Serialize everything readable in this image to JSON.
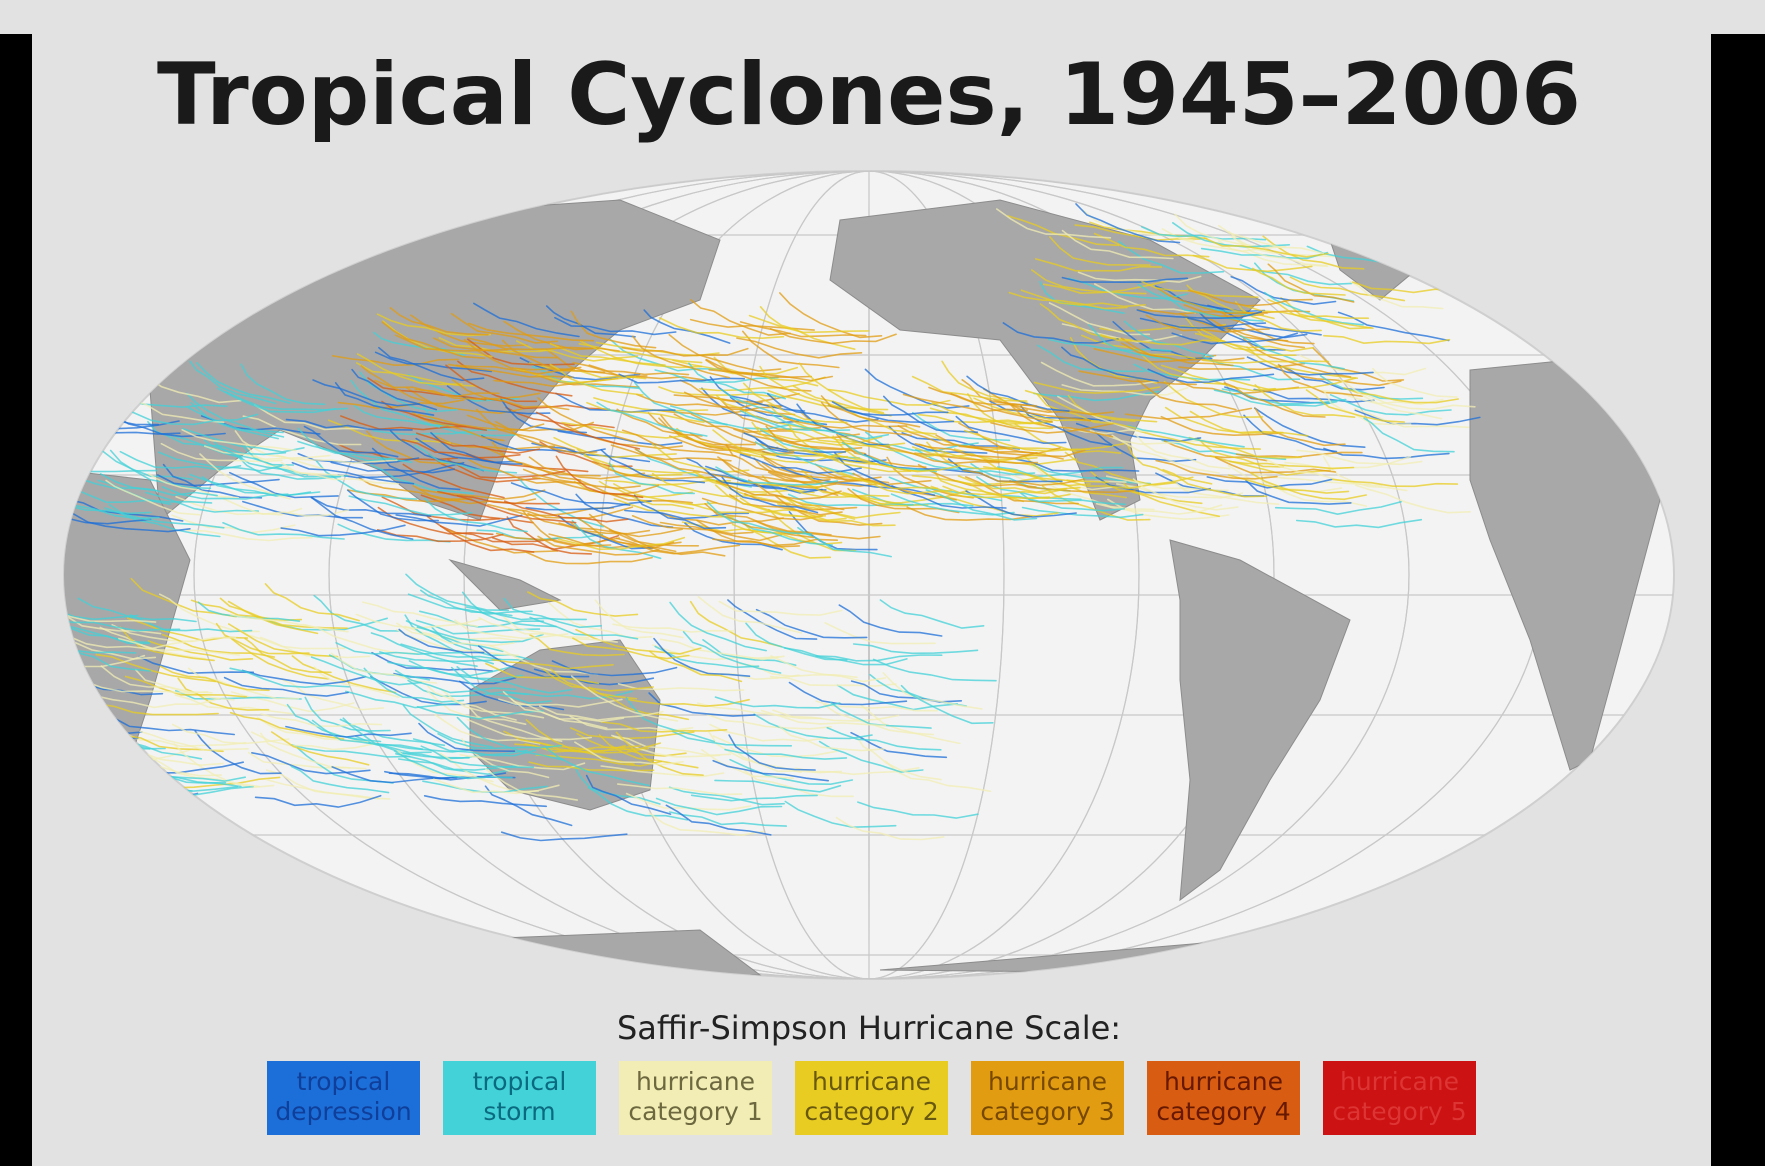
{
  "title": "Tropical Cyclones, 1945–2006",
  "legend": {
    "title": "Saffir-Simpson Hurricane Scale:",
    "items": [
      {
        "lines": [
          "tropical",
          "depression"
        ],
        "color": "#1c6fd8",
        "text_color": "#0f3f9a"
      },
      {
        "lines": [
          "tropical",
          "storm"
        ],
        "color": "#42d2d8",
        "text_color": "#0c6a80"
      },
      {
        "lines": [
          "hurricane",
          "category 1"
        ],
        "color": "#f1edb4",
        "text_color": "#6e6840"
      },
      {
        "lines": [
          "hurricane",
          "category 2"
        ],
        "color": "#e8cc22",
        "text_color": "#685810"
      },
      {
        "lines": [
          "hurricane",
          "category 3"
        ],
        "color": "#e29c12",
        "text_color": "#774800"
      },
      {
        "lines": [
          "hurricane",
          "category 4"
        ],
        "color": "#d85c12",
        "text_color": "#661800"
      },
      {
        "lines": [
          "hurricane",
          "category 5"
        ],
        "color": "#cc1212",
        "text_color": "#dd3434"
      }
    ]
  }
}
